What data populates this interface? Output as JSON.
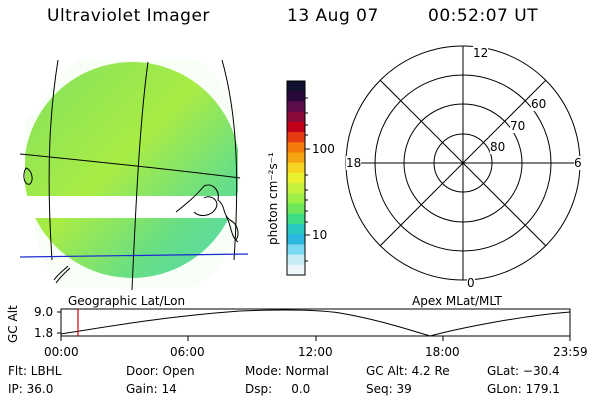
{
  "header": {
    "instrument": "Ultraviolet Imager",
    "date": "13 Aug 07",
    "time": "00:52:07 UT"
  },
  "colorbar": {
    "unit_label": "photon cm⁻²s⁻¹",
    "ticks": [
      "100",
      "10"
    ],
    "colors": [
      "#101030",
      "#2a0a3a",
      "#5a0d4a",
      "#8a0a3a",
      "#c0001a",
      "#e83a10",
      "#f57a0a",
      "#f5a512",
      "#f5d522",
      "#e8f030",
      "#c4f23c",
      "#9ef048",
      "#6ee85a",
      "#3fdc86",
      "#28c8c0",
      "#2ab8e0",
      "#7ad8f0",
      "#c8ecf6",
      "#eef6fa"
    ]
  },
  "geo_map": {
    "label": "Geographic Lat/Lon",
    "surface_colors": [
      "#7ee05a",
      "#a8ec3c",
      "#5fdc86",
      "#4cd8b8"
    ]
  },
  "polar_plot": {
    "label": "Apex MLat/MLT",
    "mlt_labels": [
      "12",
      "18",
      "6",
      "0"
    ],
    "lat_labels": [
      "60",
      "70",
      "80"
    ]
  },
  "altitude_plot": {
    "axis_label": "GC Alt",
    "y_ticks": [
      "9.0",
      "1.8"
    ],
    "x_ticks": [
      "00:00",
      "06:00",
      "12:00",
      "18:00",
      "23:59"
    ],
    "marker_color": "#d00000"
  },
  "status": {
    "flt": "Flt: LBHL",
    "door": "Door: Open",
    "mode": "Mode: Normal",
    "gc_alt": "GC Alt: 4.2 Re",
    "glat": "GLat: −30.4",
    "ip": "IP: 36.0",
    "gain": "Gain: 14",
    "dsp": "Dsp:     0.0",
    "seq": "Seq: 39",
    "glon": "GLon: 179.1"
  }
}
